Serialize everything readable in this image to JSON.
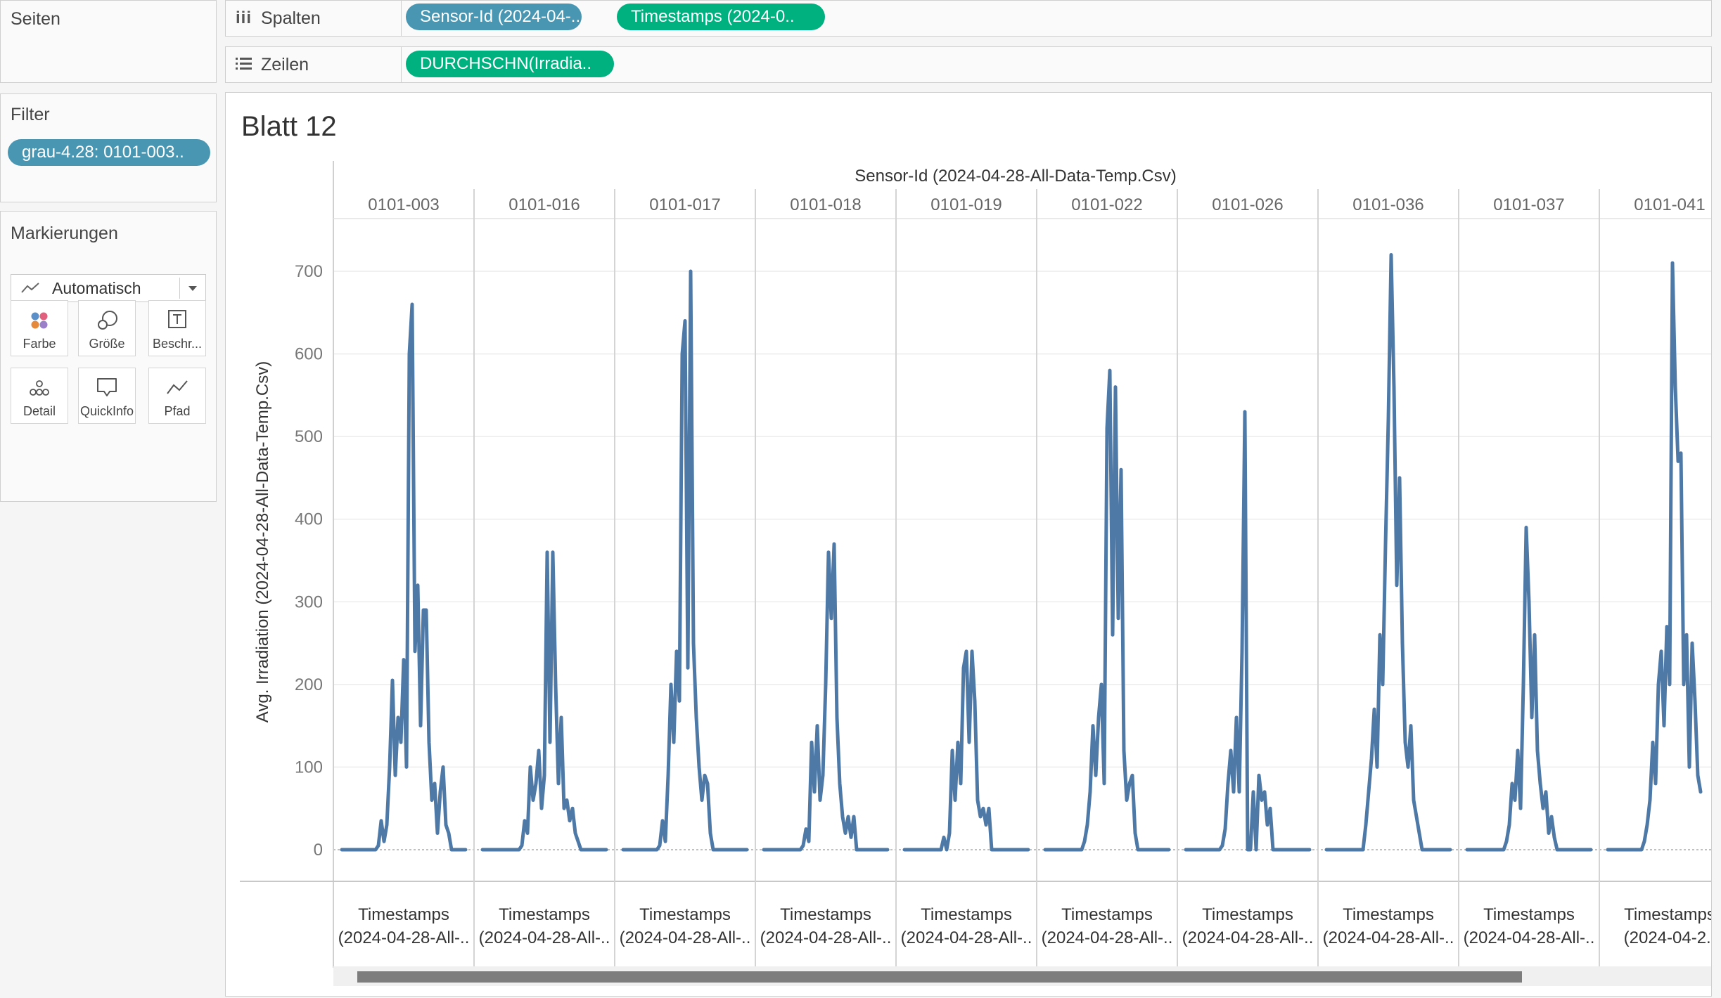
{
  "sidebar": {
    "pages_title": "Seiten",
    "filter_title": "Filter",
    "filter_pill": "grau-4.28: 0101-003..",
    "marks_title": "Markierungen",
    "marks_type": "Automatisch",
    "mark_cards": [
      {
        "label": "Farbe",
        "icon": "color-dots-icon"
      },
      {
        "label": "Größe",
        "icon": "size-circles-icon"
      },
      {
        "label": "Beschr...",
        "icon": "text-label-icon"
      },
      {
        "label": "Detail",
        "icon": "detail-dots-icon"
      },
      {
        "label": "QuickInfo",
        "icon": "tooltip-icon"
      },
      {
        "label": "Pfad",
        "icon": "path-line-icon"
      }
    ]
  },
  "shelves": {
    "columns_label": "Spalten",
    "columns_pills": [
      "Sensor-Id (2024-04-..",
      "Timestamps (2024-0.."
    ],
    "rows_label": "Zeilen",
    "rows_pills": [
      "DURCHSCHN(Irradia.."
    ]
  },
  "sheet": {
    "title": "Blatt 12",
    "column_header_title": "Sensor-Id (2024-04-28-All-Data-Temp.Csv)",
    "footer_line1": "Timestamps",
    "footer_line2": [
      "(2024-04-28-All-..",
      "(2024-04-28-All-..",
      "(2024-04-28-All-..",
      "(2024-04-28-All-..",
      "(2024-04-28-All-..",
      "(2024-04-28-All-..",
      "(2024-04-28-All-..",
      "(2024-04-28-All-..",
      "(2024-04-28-All-..",
      "(2024-04-2.."
    ]
  },
  "colors": {
    "line": "#4e79a7",
    "pill_blue": "#4996b2",
    "pill_green": "#00b180"
  },
  "chart_data": {
    "type": "line",
    "title": "Blatt 12",
    "xlabel": "Timestamps (2024-04-28-All-..",
    "ylabel": "Avg. Irradiation (2024-04-28-All-Data-Temp.Csv)",
    "ylim": [
      0,
      760
    ],
    "y_ticks": [
      0,
      100,
      200,
      300,
      400,
      500,
      600,
      700
    ],
    "grid": true,
    "panels": [
      {
        "name": "0101-003",
        "values": [
          0,
          0,
          0,
          0,
          0,
          0,
          0,
          0,
          0,
          0,
          0,
          0,
          0,
          5,
          35,
          10,
          30,
          100,
          205,
          90,
          160,
          130,
          230,
          100,
          600,
          660,
          240,
          320,
          150,
          290,
          290,
          130,
          60,
          80,
          20,
          70,
          100,
          30,
          20,
          0,
          0,
          0,
          0,
          0,
          0
        ]
      },
      {
        "name": "0101-016",
        "values": [
          0,
          0,
          0,
          0,
          0,
          0,
          0,
          0,
          0,
          0,
          0,
          0,
          0,
          0,
          5,
          35,
          20,
          100,
          60,
          80,
          120,
          50,
          90,
          360,
          130,
          360,
          200,
          80,
          160,
          50,
          60,
          35,
          50,
          20,
          10,
          0,
          0,
          0,
          0,
          0,
          0,
          0,
          0,
          0,
          0
        ]
      },
      {
        "name": "0101-017",
        "values": [
          0,
          0,
          0,
          0,
          0,
          0,
          0,
          0,
          0,
          0,
          0,
          0,
          0,
          5,
          35,
          10,
          90,
          200,
          130,
          240,
          180,
          600,
          640,
          220,
          700,
          250,
          160,
          100,
          60,
          90,
          80,
          20,
          0,
          0,
          0,
          0,
          0,
          0,
          0,
          0,
          0,
          0,
          0,
          0,
          0
        ]
      },
      {
        "name": "0101-018",
        "values": [
          0,
          0,
          0,
          0,
          0,
          0,
          0,
          0,
          0,
          0,
          0,
          0,
          0,
          0,
          5,
          25,
          10,
          130,
          70,
          150,
          60,
          90,
          200,
          360,
          280,
          370,
          160,
          80,
          40,
          20,
          40,
          15,
          40,
          0,
          0,
          0,
          0,
          0,
          0,
          0,
          0,
          0,
          0,
          0,
          0
        ]
      },
      {
        "name": "0101-019",
        "values": [
          0,
          0,
          0,
          0,
          0,
          0,
          0,
          0,
          0,
          0,
          0,
          0,
          0,
          0,
          15,
          0,
          20,
          120,
          60,
          130,
          80,
          220,
          240,
          130,
          240,
          180,
          60,
          40,
          50,
          30,
          50,
          0,
          0,
          0,
          0,
          0,
          0,
          0,
          0,
          0,
          0,
          0,
          0,
          0,
          0
        ]
      },
      {
        "name": "0101-022",
        "values": [
          0,
          0,
          0,
          0,
          0,
          0,
          0,
          0,
          0,
          0,
          0,
          0,
          0,
          0,
          10,
          30,
          70,
          150,
          90,
          160,
          200,
          80,
          510,
          580,
          260,
          560,
          280,
          460,
          120,
          60,
          80,
          90,
          20,
          0,
          0,
          0,
          0,
          0,
          0,
          0,
          0,
          0,
          0,
          0,
          0
        ]
      },
      {
        "name": "0101-026",
        "values": [
          0,
          0,
          0,
          0,
          0,
          0,
          0,
          0,
          0,
          0,
          0,
          0,
          0,
          5,
          25,
          80,
          120,
          70,
          160,
          70,
          240,
          530,
          0,
          0,
          70,
          0,
          90,
          60,
          70,
          30,
          50,
          0,
          0,
          0,
          0,
          0,
          0,
          0,
          0,
          0,
          0,
          0,
          0,
          0,
          0
        ]
      },
      {
        "name": "0101-036",
        "values": [
          0,
          0,
          0,
          0,
          0,
          0,
          0,
          0,
          0,
          0,
          0,
          0,
          0,
          0,
          30,
          70,
          110,
          170,
          100,
          260,
          200,
          370,
          520,
          720,
          560,
          320,
          450,
          250,
          130,
          100,
          150,
          60,
          40,
          20,
          0,
          0,
          0,
          0,
          0,
          0,
          0,
          0,
          0,
          0,
          0
        ]
      },
      {
        "name": "0101-037",
        "values": [
          0,
          0,
          0,
          0,
          0,
          0,
          0,
          0,
          0,
          0,
          0,
          0,
          0,
          0,
          10,
          30,
          80,
          60,
          120,
          50,
          200,
          390,
          300,
          160,
          260,
          120,
          80,
          50,
          70,
          20,
          40,
          15,
          0,
          0,
          0,
          0,
          0,
          0,
          0,
          0,
          0,
          0,
          0,
          0,
          0
        ]
      },
      {
        "name": "0101-041",
        "values": [
          0,
          0,
          0,
          0,
          0,
          0,
          0,
          0,
          0,
          0,
          0,
          0,
          0,
          10,
          30,
          60,
          130,
          80,
          200,
          240,
          150,
          270,
          200,
          710,
          560,
          470,
          480,
          200,
          260,
          100,
          250,
          180,
          90,
          70
        ]
      }
    ]
  }
}
